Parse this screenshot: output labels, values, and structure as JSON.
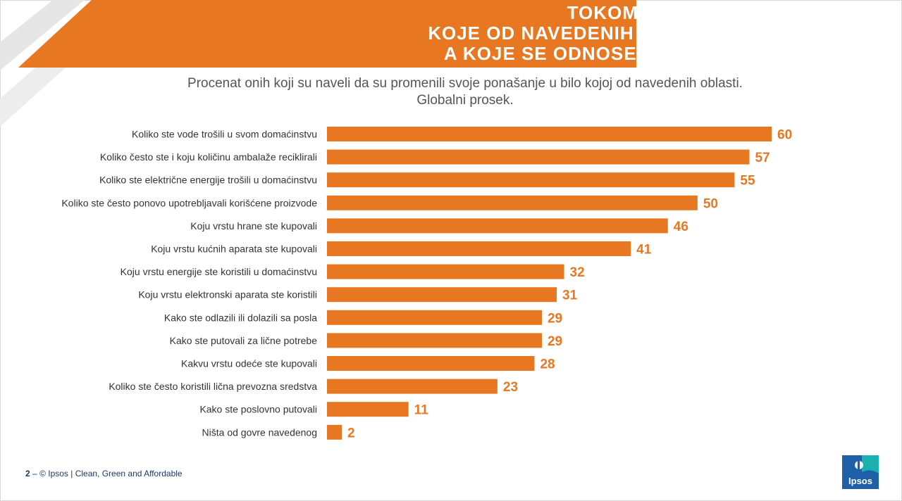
{
  "title": "TOKOM PROTEKLIH PAR GODINA,\nKOJE OD NAVEDENIH PROMENA STE NAPRAVILI\nA KOJE SE ODNOSE NA KLIMATSKE PROMENE",
  "subtitle_line1": "Procenat onih koji su naveli da su promenili svoje ponašanje u bilo kojoj od navedenih oblasti.",
  "subtitle_line2": "Globalni prosek.",
  "footer": {
    "page_number": "2",
    "separator": "–",
    "text": "© Ipsos | Clean, Green and Affordable"
  },
  "logo_text": "Ipsos",
  "colors": {
    "bar": "#e87722",
    "label_value": "#e87722",
    "logo_bg": "#1e5fa8",
    "logo_accent": "#1ab0b0"
  },
  "chart_data": {
    "type": "bar",
    "orientation": "horizontal",
    "categories": [
      "Koliko ste vode trošili u svom domaćinstvu",
      "Koliko često ste i koju količinu ambalaže reciklirali",
      "Koliko ste električne energije trošili u domaćinstvu",
      "Koliko ste često ponovo upotrebljavali korišćene proizvode",
      "Koju vrstu hrane ste kupovali",
      "Koju vrstu kućnih aparata ste kupovali",
      "Koju vrstu energije ste koristili u domaćinstvu",
      "Koju vrstu elektronski aparata ste koristili",
      "Kako ste odlazili ili dolazili sa posla",
      "Kako ste putovali za lične potrebe",
      "Kakvu vrstu odeće ste kupovali",
      "Koliko ste često koristili lična prevozna sredstva",
      "Kako ste poslovno putovali",
      "Ništa od govre navedenog"
    ],
    "values": [
      60,
      57,
      55,
      50,
      46,
      41,
      32,
      31,
      29,
      29,
      28,
      23,
      11,
      2
    ],
    "xlim": [
      0,
      60
    ],
    "grid": false,
    "legend": "none"
  }
}
